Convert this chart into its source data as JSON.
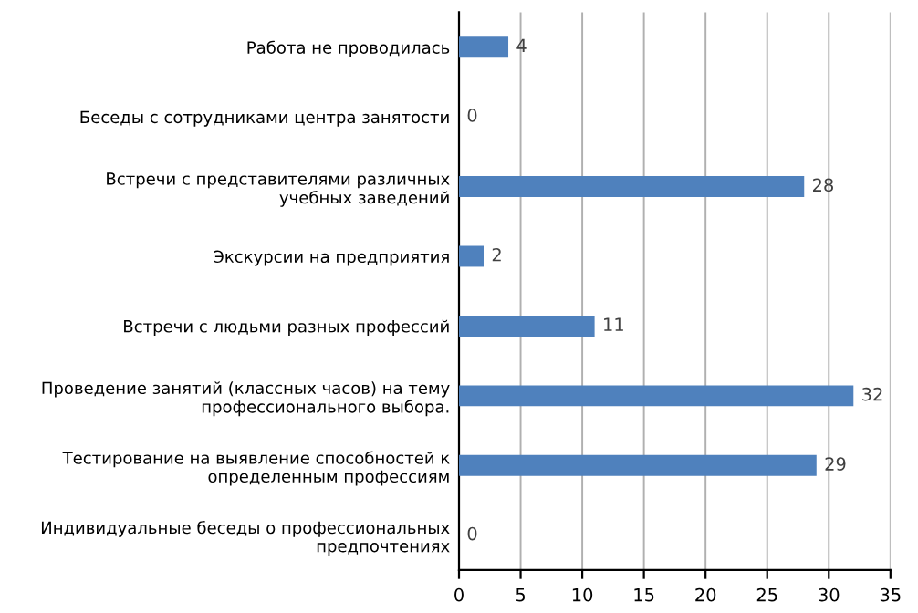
{
  "chart_data": {
    "type": "bar",
    "orientation": "horizontal",
    "categories": [
      "Работа не проводилась",
      "Беседы с сотрудниками центра занятости",
      "Встречи с представителями различных\nучебных заведений",
      "Экскурсии на предприятия",
      "Встречи с людьми разных профессий",
      "Проведение занятий (классных часов) на тему\nпрофессионального выбора.",
      "Тестирование на выявление способностей к\nопределенным профессиям",
      "Индивидуальные беседы о профессиональных\nпредпочтениях"
    ],
    "values": [
      4,
      0,
      28,
      2,
      11,
      32,
      29,
      0
    ],
    "color": "#4f81bd",
    "xlim": [
      0,
      35
    ],
    "xticks": [
      0,
      5,
      10,
      15,
      20,
      25,
      30,
      35
    ],
    "grid": "x",
    "data_labels": true
  }
}
